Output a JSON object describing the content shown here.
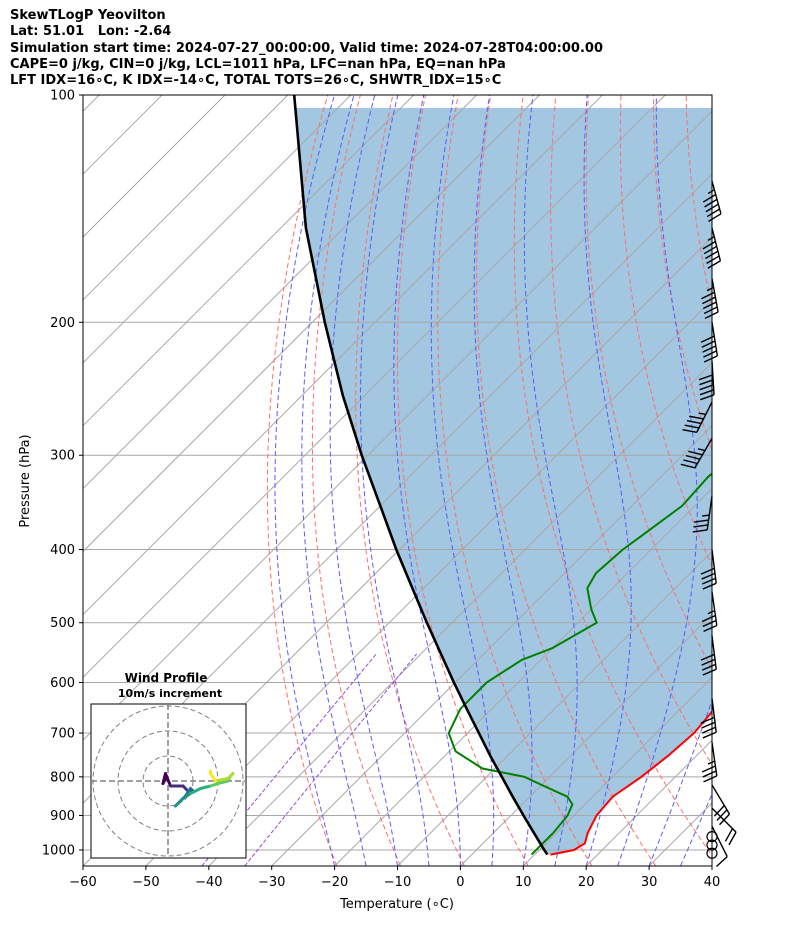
{
  "header": {
    "line1": "SkewTLogP Yeovilton",
    "line2": "Lat: 51.01   Lon: -2.64",
    "line3": "Simulation start time: 2024-07-27_00:00:00, Valid time: 2024-07-28T04:00:00.00",
    "line4": "CAPE=0 j/kg, CIN=0 j/kg, LCL=1011 hPa, LFC=nan hPa, EQ=nan hPa",
    "line5": "LFT IDX=16∘C, K IDX=-14∘C, TOTAL TOTS=26∘C, SHWTR_IDX=15∘C"
  },
  "colors": {
    "temperature": "#ff0000",
    "dewpoint": "#008000",
    "parcel": "#000000",
    "shade": "#a3c7e0",
    "dry_adiabats": "#ff6e6e",
    "moist_adiabats": "#5a5aff",
    "mixing_ratio_lines": "#9a4ad8",
    "isotherms": "#a8a8a8",
    "isobars": "#a8a8a8"
  },
  "chart_data": [
    {
      "type": "line",
      "title": "",
      "xlabel": "Temperature (∘C)",
      "ylabel": "Pressure (hPa)",
      "xlim": [
        -60,
        40
      ],
      "ylim": [
        1050,
        100
      ],
      "y_scale": "log",
      "x_ticks": [
        "−60",
        "−50",
        "−40",
        "−30",
        "−20",
        "−10",
        "0",
        "10",
        "20",
        "30",
        "40"
      ],
      "y_ticks": [
        "100",
        "200",
        "300",
        "400",
        "500",
        "600",
        "700",
        "800",
        "900",
        "1000"
      ],
      "grid": true,
      "series": [
        {
          "role": "temperature",
          "values": [
            [
              1014,
              12.5
            ],
            [
              1000,
              15.5
            ],
            [
              980,
              16.2
            ],
            [
              950,
              15.0
            ],
            [
              900,
              13.6
            ],
            [
              850,
              13.2
            ],
            [
              800,
              14.6
            ],
            [
              750,
              15.5
            ],
            [
              700,
              16.0
            ],
            [
              650,
              15.4
            ],
            [
              600,
              14.3
            ],
            [
              550,
              12.5
            ],
            [
              500,
              10.0
            ],
            [
              450,
              5.5
            ],
            [
              400,
              0.0
            ],
            [
              350,
              -5.0
            ],
            [
              300,
              -10.0
            ],
            [
              270,
              -12.0
            ],
            [
              250,
              -13.0
            ],
            [
              220,
              -14.0
            ],
            [
              200,
              -14.5
            ],
            [
              170,
              -12.5
            ],
            [
              150,
              -8.0
            ],
            [
              130,
              -3.0
            ],
            [
              110,
              0.5
            ],
            [
              100,
              1.0
            ]
          ]
        },
        {
          "role": "dewpoint",
          "values": [
            [
              1014,
              9.5
            ],
            [
              990,
              9.5
            ],
            [
              950,
              9.5
            ],
            [
              900,
              9.0
            ],
            [
              870,
              8.0
            ],
            [
              850,
              6.0
            ],
            [
              820,
              0.0
            ],
            [
              800,
              -4.0
            ],
            [
              780,
              -12.0
            ],
            [
              740,
              -19.0
            ],
            [
              700,
              -23.0
            ],
            [
              650,
              -25.0
            ],
            [
              600,
              -25.0
            ],
            [
              560,
              -23.0
            ],
            [
              540,
              -20.0
            ],
            [
              500,
              -17.0
            ],
            [
              480,
              -20.0
            ],
            [
              450,
              -24.0
            ],
            [
              430,
              -25.0
            ],
            [
              400,
              -24.5
            ],
            [
              380,
              -23.5
            ],
            [
              350,
              -22.0
            ],
            [
              320,
              -22.5
            ],
            [
              300,
              -21.5
            ],
            [
              280,
              -22.0
            ],
            [
              265,
              -24.0
            ],
            [
              250,
              -27.0
            ],
            [
              230,
              -29.0
            ],
            [
              215,
              -29.5
            ],
            [
              200,
              -28.0
            ],
            [
              190,
              -26.0
            ],
            [
              175,
              -24.0
            ],
            [
              160,
              -25.0
            ],
            [
              148,
              -29.0
            ],
            [
              140,
              -34.0
            ],
            [
              130,
              -36.0
            ],
            [
              118,
              -36.0
            ],
            [
              110,
              -37.0
            ],
            [
              100,
              -38.0
            ]
          ]
        },
        {
          "role": "parcel",
          "values": [
            [
              1014,
              12.0
            ],
            [
              1000,
              10.8
            ],
            [
              950,
              6.5
            ],
            [
              900,
              2.0
            ],
            [
              850,
              -2.7
            ],
            [
              800,
              -7.6
            ],
            [
              750,
              -12.8
            ],
            [
              700,
              -18.2
            ],
            [
              650,
              -24.0
            ],
            [
              600,
              -30.2
            ],
            [
              550,
              -36.8
            ],
            [
              500,
              -44.0
            ],
            [
              450,
              -51.8
            ],
            [
              400,
              -60.5
            ],
            [
              350,
              -70.0
            ],
            [
              300,
              -81.0
            ],
            [
              250,
              -93.5
            ],
            [
              200,
              -108.0
            ],
            [
              150,
              -126.0
            ],
            [
              100,
              -149.0
            ]
          ]
        }
      ]
    },
    {
      "type": "scatter",
      "title": "Wind Profile",
      "subtitle": "10m/s increment",
      "units_per_ring": 10,
      "rings": 3,
      "points": [
        [
          -1,
          1
        ],
        [
          -2,
          -1
        ],
        [
          -1,
          3
        ],
        [
          1,
          -2
        ],
        [
          4,
          -2
        ],
        [
          6,
          -2
        ],
        [
          8,
          -4
        ],
        [
          10,
          -4
        ],
        [
          9,
          -3
        ],
        [
          7,
          -6
        ],
        [
          5,
          -8
        ],
        [
          3,
          -10
        ],
        [
          4,
          -9
        ],
        [
          6,
          -7
        ],
        [
          9,
          -5
        ],
        [
          13,
          -3
        ],
        [
          17,
          -2
        ],
        [
          20,
          -1
        ],
        [
          24,
          0
        ],
        [
          25,
          2
        ],
        [
          26,
          3
        ],
        [
          24,
          1
        ],
        [
          19,
          0
        ],
        [
          17,
          3
        ],
        [
          17,
          4
        ]
      ]
    }
  ],
  "wind_barbs": [
    {
      "p": 130,
      "u": -15,
      "v": 55
    },
    {
      "p": 150,
      "u": -14,
      "v": 55
    },
    {
      "p": 175,
      "u": -10,
      "v": 55
    },
    {
      "p": 200,
      "u": -8,
      "v": 50
    },
    {
      "p": 225,
      "u": -3,
      "v": 50
    },
    {
      "p": 255,
      "u": 20,
      "v": 40
    },
    {
      "p": 285,
      "u": 22,
      "v": 38
    },
    {
      "p": 340,
      "u": 5,
      "v": 35
    },
    {
      "p": 400,
      "u": -5,
      "v": 40
    },
    {
      "p": 455,
      "u": -5,
      "v": 35
    },
    {
      "p": 520,
      "u": -5,
      "v": 40
    },
    {
      "p": 630,
      "u": -5,
      "v": 40
    },
    {
      "p": 720,
      "u": -5,
      "v": 35
    },
    {
      "p": 820,
      "u": -15,
      "v": 25
    },
    {
      "p": 880,
      "u": -15,
      "v": 15
    },
    {
      "p": 930,
      "u": -5,
      "v": 10
    },
    {
      "p": 960,
      "u": 0,
      "v": 0
    },
    {
      "p": 985,
      "u": 0,
      "v": 0
    },
    {
      "p": 1010,
      "u": 0,
      "v": 0
    }
  ]
}
